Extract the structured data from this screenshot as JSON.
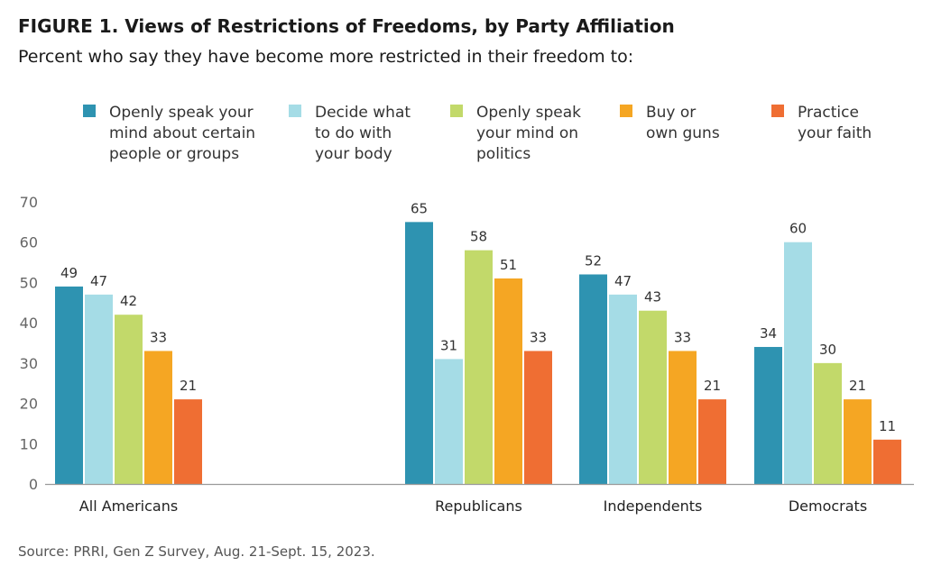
{
  "figure": {
    "title": "FIGURE 1. Views of Restrictions of Freedoms, by Party Affiliation",
    "subtitle": "Percent who say they have become more restricted in their freedom to:",
    "source": "Source: PRRI, Gen Z Survey, Aug. 21-Sept. 15, 2023."
  },
  "legend": {
    "items": [
      {
        "lines": [
          "Openly speak your",
          "mind about certain",
          "people or groups"
        ],
        "color": "#2E93B1"
      },
      {
        "lines": [
          "Decide what",
          "to do with",
          "your body"
        ],
        "color": "#A5DCE6"
      },
      {
        "lines": [
          "Openly speak",
          "your mind on",
          "politics"
        ],
        "color": "#C2D96A"
      },
      {
        "lines": [
          "Buy or",
          "own guns"
        ],
        "color": "#F5A623"
      },
      {
        "lines": [
          "Practice",
          "your faith"
        ],
        "color": "#EF6E33"
      }
    ]
  },
  "chart_data": {
    "type": "bar",
    "categories": [
      "All Americans",
      "Republicans",
      "Independents",
      "Democrats"
    ],
    "series": [
      {
        "name": "Openly speak your mind about certain people or groups",
        "values": [
          49,
          65,
          52,
          34
        ],
        "color": "#2E93B1"
      },
      {
        "name": "Decide what to do with your body",
        "values": [
          47,
          31,
          47,
          60
        ],
        "color": "#A5DCE6"
      },
      {
        "name": "Openly speak your mind on politics",
        "values": [
          42,
          58,
          43,
          30
        ],
        "color": "#C2D96A"
      },
      {
        "name": "Buy or own guns",
        "values": [
          33,
          51,
          33,
          21
        ],
        "color": "#F5A623"
      },
      {
        "name": "Practice your faith",
        "values": [
          21,
          33,
          21,
          11
        ],
        "color": "#EF6E33"
      }
    ],
    "yticks": [
      "0",
      "10",
      "20",
      "30",
      "40",
      "50",
      "60",
      "70"
    ],
    "ylim": [
      0,
      70
    ],
    "grid": false,
    "legend_position": "top"
  }
}
